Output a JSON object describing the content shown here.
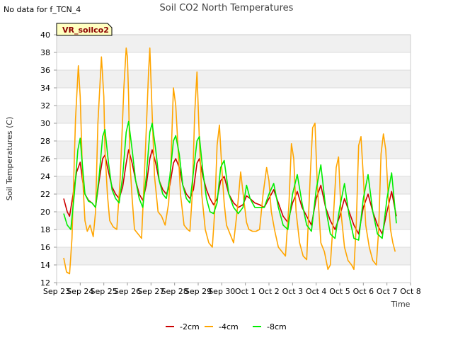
{
  "note": "No data for f_TCN_4",
  "site_label": "VR_soilco2",
  "chart_data": {
    "type": "line",
    "title": "Soil CO2 North Temperatures",
    "xlabel": "Time",
    "ylabel": "Soil Temperatures (C)",
    "xlim": [
      0,
      15
    ],
    "ylim": [
      12,
      40
    ],
    "yticks": [
      12,
      14,
      16,
      18,
      20,
      22,
      24,
      26,
      28,
      30,
      32,
      34,
      36,
      38,
      40
    ],
    "xtick_labels": [
      "Sep 23",
      "Sep 24",
      "Sep 25",
      "Sep 26",
      "Sep 27",
      "Sep 28",
      "Sep 29",
      "Sep 30",
      "Oct 1",
      "Oct 2",
      "Oct 3",
      "Oct 4",
      "Oct 5",
      "Oct 6",
      "Oct 7",
      "Oct 8"
    ],
    "grid": true,
    "legend_position": "bottom",
    "series": [
      {
        "name": "-2cm",
        "color": "#cc0000",
        "x": [
          0.3,
          0.45,
          0.55,
          0.7,
          0.85,
          1.0,
          1.1,
          1.2,
          1.35,
          1.5,
          1.65,
          1.8,
          1.95,
          2.05,
          2.2,
          2.35,
          2.5,
          2.65,
          2.8,
          2.95,
          3.05,
          3.2,
          3.35,
          3.5,
          3.65,
          3.8,
          3.95,
          4.05,
          4.2,
          4.35,
          4.5,
          4.65,
          4.8,
          4.95,
          5.05,
          5.2,
          5.35,
          5.5,
          5.65,
          5.8,
          5.95,
          6.05,
          6.2,
          6.35,
          6.5,
          6.65,
          6.8,
          6.95,
          7.1,
          7.3,
          7.5,
          7.7,
          7.9,
          8.05,
          8.2,
          8.4,
          8.6,
          8.8,
          9.0,
          9.2,
          9.4,
          9.6,
          9.8,
          10.0,
          10.2,
          10.4,
          10.6,
          10.8,
          11.0,
          11.2,
          11.4,
          11.6,
          11.8,
          12.0,
          12.2,
          12.4,
          12.6,
          12.8,
          13.0,
          13.2,
          13.4,
          13.6,
          13.8,
          14.0,
          14.2,
          14.4
        ],
        "y": [
          21.5,
          20.0,
          19.5,
          22.0,
          24.5,
          25.6,
          23.5,
          22.0,
          21.3,
          21.0,
          20.5,
          23.5,
          26.0,
          26.4,
          24.5,
          22.8,
          22.0,
          21.5,
          22.8,
          25.5,
          27.0,
          25.5,
          23.5,
          22.0,
          21.3,
          23.0,
          26.0,
          27.0,
          25.5,
          23.5,
          22.5,
          22.0,
          23.0,
          25.5,
          26.0,
          25.0,
          23.0,
          22.0,
          21.5,
          22.5,
          25.5,
          26.0,
          24.0,
          22.5,
          21.5,
          20.8,
          21.5,
          23.5,
          24.0,
          22.0,
          21.0,
          20.5,
          20.8,
          21.8,
          21.5,
          21.0,
          20.8,
          20.5,
          21.5,
          22.5,
          21.0,
          19.5,
          18.8,
          21.0,
          22.3,
          20.5,
          19.5,
          18.5,
          21.5,
          23.0,
          20.5,
          19.0,
          18.0,
          19.5,
          21.5,
          20.0,
          18.5,
          17.5,
          20.5,
          22.0,
          20.0,
          18.5,
          17.5,
          20.0,
          22.3,
          19.5
        ]
      },
      {
        "name": "-4cm",
        "color": "#ffa500",
        "x": [
          0.3,
          0.42,
          0.55,
          0.65,
          0.8,
          0.92,
          1.0,
          1.1,
          1.2,
          1.3,
          1.42,
          1.55,
          1.65,
          1.75,
          1.9,
          2.0,
          2.05,
          2.15,
          2.25,
          2.4,
          2.55,
          2.7,
          2.85,
          2.95,
          3.0,
          3.05,
          3.1,
          3.2,
          3.3,
          3.45,
          3.6,
          3.75,
          3.9,
          3.95,
          4.05,
          4.15,
          4.3,
          4.45,
          4.6,
          4.75,
          4.85,
          4.95,
          5.05,
          5.15,
          5.25,
          5.4,
          5.55,
          5.65,
          5.75,
          5.85,
          5.95,
          6.05,
          6.15,
          6.3,
          6.45,
          6.6,
          6.7,
          6.8,
          6.9,
          7.0,
          7.1,
          7.2,
          7.35,
          7.5,
          7.65,
          7.8,
          7.95,
          8.05,
          8.15,
          8.3,
          8.45,
          8.6,
          8.75,
          8.9,
          9.0,
          9.1,
          9.25,
          9.4,
          9.55,
          9.7,
          9.85,
          9.95,
          10.05,
          10.15,
          10.3,
          10.45,
          10.6,
          10.75,
          10.85,
          10.95,
          11.05,
          11.2,
          11.35,
          11.5,
          11.6,
          11.7,
          11.85,
          11.95,
          12.05,
          12.2,
          12.35,
          12.5,
          12.6,
          12.7,
          12.8,
          12.9,
          13.0,
          13.1,
          13.25,
          13.4,
          13.55,
          13.65,
          13.75,
          13.85,
          13.95,
          14.05,
          14.15,
          14.25,
          14.35
        ],
        "y": [
          14.8,
          13.2,
          13.0,
          17.0,
          30.5,
          36.5,
          33.0,
          24.0,
          19.0,
          17.8,
          18.5,
          17.2,
          20.0,
          30.0,
          37.5,
          33.0,
          27.0,
          22.0,
          19.0,
          18.3,
          18.0,
          24.0,
          34.0,
          38.5,
          37.5,
          33.0,
          26.0,
          21.5,
          18.0,
          17.5,
          17.0,
          26.0,
          36.0,
          38.5,
          31.0,
          24.0,
          20.0,
          19.5,
          18.5,
          21.0,
          26.0,
          34.0,
          32.0,
          27.0,
          22.0,
          18.5,
          18.0,
          17.8,
          22.0,
          31.0,
          35.8,
          28.0,
          22.0,
          18.0,
          16.5,
          16.0,
          20.0,
          27.5,
          29.8,
          25.0,
          21.0,
          18.5,
          17.5,
          16.5,
          20.0,
          24.5,
          21.0,
          18.8,
          18.0,
          17.8,
          17.8,
          18.0,
          22.0,
          25.0,
          23.5,
          20.0,
          17.8,
          16.0,
          15.5,
          15.0,
          21.0,
          27.7,
          26.0,
          20.0,
          16.5,
          15.0,
          14.6,
          24.0,
          29.5,
          30.0,
          23.0,
          16.5,
          15.5,
          13.5,
          14.0,
          18.0,
          25.0,
          26.2,
          20.0,
          16.0,
          14.5,
          14.0,
          13.5,
          18.5,
          27.5,
          28.5,
          24.0,
          18.5,
          16.0,
          14.5,
          14.0,
          18.0,
          26.5,
          28.8,
          27.0,
          22.0,
          18.0,
          16.5,
          15.5
        ]
      },
      {
        "name": "-8cm",
        "color": "#00ee00",
        "x": [
          0.3,
          0.45,
          0.6,
          0.75,
          0.9,
          1.0,
          1.1,
          1.2,
          1.35,
          1.5,
          1.65,
          1.8,
          1.95,
          2.05,
          2.2,
          2.35,
          2.5,
          2.65,
          2.8,
          2.95,
          3.05,
          3.2,
          3.35,
          3.5,
          3.65,
          3.8,
          3.95,
          4.05,
          4.2,
          4.35,
          4.5,
          4.65,
          4.8,
          4.95,
          5.05,
          5.2,
          5.35,
          5.5,
          5.65,
          5.8,
          5.95,
          6.05,
          6.2,
          6.35,
          6.5,
          6.65,
          6.8,
          6.95,
          7.1,
          7.3,
          7.5,
          7.7,
          7.9,
          8.05,
          8.2,
          8.4,
          8.6,
          8.8,
          9.0,
          9.2,
          9.4,
          9.6,
          9.8,
          10.0,
          10.2,
          10.4,
          10.6,
          10.8,
          11.0,
          11.2,
          11.4,
          11.6,
          11.8,
          12.0,
          12.2,
          12.4,
          12.6,
          12.8,
          13.0,
          13.2,
          13.4,
          13.6,
          13.8,
          14.0,
          14.2,
          14.4
        ],
        "y": [
          19.8,
          18.5,
          18.0,
          22.0,
          27.0,
          28.3,
          25.0,
          22.0,
          21.2,
          21.0,
          20.5,
          24.0,
          28.5,
          29.3,
          25.5,
          22.5,
          21.5,
          21.0,
          24.0,
          29.0,
          30.2,
          27.0,
          23.5,
          21.5,
          20.5,
          24.0,
          29.0,
          30.0,
          27.0,
          23.5,
          22.0,
          21.5,
          24.0,
          28.0,
          28.6,
          26.5,
          23.0,
          21.5,
          21.0,
          24.5,
          28.0,
          28.5,
          24.5,
          21.5,
          20.0,
          19.8,
          21.0,
          25.0,
          25.8,
          22.0,
          20.5,
          19.8,
          20.5,
          23.0,
          21.5,
          20.5,
          20.5,
          20.5,
          22.0,
          23.2,
          20.5,
          18.5,
          18.0,
          22.0,
          24.2,
          21.0,
          18.5,
          17.8,
          22.5,
          25.3,
          20.5,
          17.5,
          17.0,
          20.5,
          23.2,
          19.5,
          17.0,
          16.8,
          21.5,
          24.2,
          20.0,
          17.5,
          17.0,
          21.5,
          24.4,
          18.7
        ]
      }
    ]
  }
}
